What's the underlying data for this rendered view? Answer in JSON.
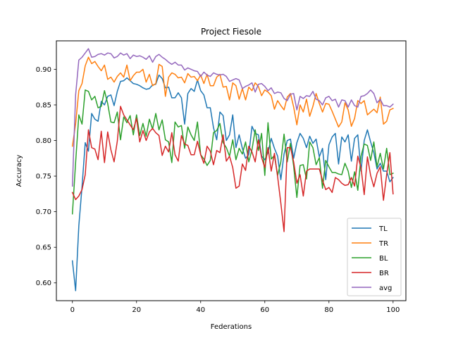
{
  "chart_data": {
    "type": "line",
    "title": "Project Fiesole",
    "xlabel": "Federations",
    "ylabel": "Accuracy",
    "xlim": [
      -5,
      104
    ],
    "ylim": [
      0.575,
      0.94
    ],
    "xticks": [
      0,
      20,
      40,
      60,
      80,
      100
    ],
    "yticks": [
      0.6,
      0.65,
      0.7,
      0.75,
      0.8,
      0.85,
      0.9
    ],
    "ytick_labels": [
      "0.60",
      "0.65",
      "0.70",
      "0.75",
      "0.80",
      "0.85",
      "0.90"
    ],
    "legend_position": "lower-right",
    "series": [
      {
        "name": "TL",
        "color": "#1f77b4",
        "values": [
          0.631,
          0.589,
          0.68,
          0.735,
          0.797,
          0.785,
          0.838,
          0.83,
          0.827,
          0.855,
          0.85,
          0.862,
          0.864,
          0.849,
          0.869,
          0.883,
          0.884,
          0.888,
          0.884,
          0.88,
          0.879,
          0.877,
          0.874,
          0.872,
          0.873,
          0.878,
          0.879,
          0.892,
          0.887,
          0.874,
          0.875,
          0.86,
          0.86,
          0.867,
          0.86,
          0.823,
          0.866,
          0.873,
          0.869,
          0.885,
          0.87,
          0.864,
          0.846,
          0.846,
          0.818,
          0.801,
          0.84,
          0.835,
          0.8,
          0.808,
          0.836,
          0.79,
          0.808,
          0.789,
          0.775,
          0.78,
          0.82,
          0.81,
          0.808,
          0.778,
          0.773,
          0.783,
          0.803,
          0.789,
          0.778,
          0.745,
          0.781,
          0.8,
          0.802,
          0.775,
          0.797,
          0.81,
          0.803,
          0.79,
          0.806,
          0.796,
          0.802,
          0.777,
          0.789,
          0.745,
          0.794,
          0.805,
          0.81,
          0.767,
          0.805,
          0.798,
          0.808,
          0.771,
          0.803,
          0.808,
          0.757,
          0.8,
          0.815,
          0.798,
          0.783,
          0.76,
          0.768,
          0.757,
          0.757,
          0.742,
          0.748
        ]
      },
      {
        "name": "TR",
        "color": "#ff7f0e",
        "values": [
          0.792,
          0.823,
          0.87,
          0.88,
          0.905,
          0.917,
          0.908,
          0.911,
          0.904,
          0.898,
          0.906,
          0.886,
          0.889,
          0.882,
          0.89,
          0.895,
          0.889,
          0.906,
          0.884,
          0.891,
          0.896,
          0.896,
          0.9,
          0.882,
          0.893,
          0.877,
          0.88,
          0.907,
          0.904,
          0.862,
          0.889,
          0.895,
          0.893,
          0.888,
          0.889,
          0.881,
          0.894,
          0.889,
          0.89,
          0.884,
          0.892,
          0.88,
          0.893,
          0.877,
          0.877,
          0.889,
          0.893,
          0.875,
          0.876,
          0.857,
          0.881,
          0.877,
          0.858,
          0.873,
          0.857,
          0.875,
          0.87,
          0.881,
          0.876,
          0.863,
          0.871,
          0.868,
          0.863,
          0.844,
          0.856,
          0.849,
          0.843,
          0.861,
          0.866,
          0.847,
          0.822,
          0.85,
          0.84,
          0.858,
          0.834,
          0.848,
          0.866,
          0.852,
          0.84,
          0.852,
          0.851,
          0.841,
          0.83,
          0.819,
          0.826,
          0.853,
          0.843,
          0.82,
          0.831,
          0.856,
          0.852,
          0.856,
          0.836,
          0.84,
          0.844,
          0.839,
          0.861,
          0.823,
          0.827,
          0.843,
          0.845
        ]
      },
      {
        "name": "BL",
        "color": "#2ca02c",
        "values": [
          0.697,
          0.769,
          0.836,
          0.823,
          0.871,
          0.869,
          0.857,
          0.862,
          0.846,
          0.848,
          0.87,
          0.852,
          0.826,
          0.825,
          0.84,
          0.801,
          0.833,
          0.825,
          0.835,
          0.808,
          0.836,
          0.807,
          0.824,
          0.806,
          0.83,
          0.816,
          0.838,
          0.815,
          0.829,
          0.801,
          0.798,
          0.769,
          0.826,
          0.819,
          0.821,
          0.789,
          0.819,
          0.808,
          0.8,
          0.826,
          0.78,
          0.774,
          0.765,
          0.772,
          0.811,
          0.814,
          0.824,
          0.797,
          0.79,
          0.778,
          0.801,
          0.773,
          0.789,
          0.781,
          0.798,
          0.77,
          0.787,
          0.815,
          0.786,
          0.81,
          0.751,
          0.825,
          0.774,
          0.779,
          0.751,
          0.77,
          0.809,
          0.77,
          0.796,
          0.764,
          0.72,
          0.765,
          0.766,
          0.746,
          0.798,
          0.79,
          0.766,
          0.776,
          0.733,
          0.772,
          0.763,
          0.755,
          0.755,
          0.753,
          0.752,
          0.768,
          0.757,
          0.734,
          0.756,
          0.73,
          0.778,
          0.795,
          0.793,
          0.772,
          0.798,
          0.763,
          0.782,
          0.76,
          0.789,
          0.752,
          0.754
        ]
      },
      {
        "name": "BR",
        "color": "#d62728",
        "values": [
          0.727,
          0.717,
          0.722,
          0.731,
          0.752,
          0.815,
          0.79,
          0.788,
          0.773,
          0.813,
          0.769,
          0.812,
          0.787,
          0.77,
          0.799,
          0.848,
          0.836,
          0.829,
          0.822,
          0.815,
          0.831,
          0.798,
          0.814,
          0.8,
          0.812,
          0.817,
          0.811,
          0.807,
          0.779,
          0.792,
          0.784,
          0.811,
          0.78,
          0.771,
          0.807,
          0.795,
          0.793,
          0.78,
          0.78,
          0.799,
          0.78,
          0.768,
          0.792,
          0.785,
          0.766,
          0.786,
          0.783,
          0.808,
          0.771,
          0.778,
          0.762,
          0.733,
          0.736,
          0.767,
          0.758,
          0.792,
          0.784,
          0.77,
          0.801,
          0.776,
          0.762,
          0.79,
          0.757,
          0.782,
          0.749,
          0.712,
          0.672,
          0.79,
          0.79,
          0.77,
          0.74,
          0.752,
          0.722,
          0.757,
          0.76,
          0.76,
          0.76,
          0.76,
          0.744,
          0.731,
          0.734,
          0.727,
          0.748,
          0.745,
          0.74,
          0.737,
          0.738,
          0.748,
          0.736,
          0.778,
          0.762,
          0.724,
          0.777,
          0.751,
          0.735,
          0.754,
          0.763,
          0.716,
          0.752,
          0.783,
          0.725
        ]
      },
      {
        "name": "avg",
        "color": "#9467bd",
        "values": [
          0.736,
          0.864,
          0.913,
          0.917,
          0.923,
          0.929,
          0.917,
          0.918,
          0.921,
          0.922,
          0.92,
          0.923,
          0.922,
          0.916,
          0.918,
          0.923,
          0.92,
          0.922,
          0.915,
          0.92,
          0.918,
          0.919,
          0.917,
          0.914,
          0.919,
          0.91,
          0.918,
          0.921,
          0.917,
          0.914,
          0.91,
          0.907,
          0.91,
          0.906,
          0.906,
          0.899,
          0.902,
          0.9,
          0.898,
          0.897,
          0.89,
          0.896,
          0.892,
          0.89,
          0.895,
          0.893,
          0.892,
          0.893,
          0.89,
          0.883,
          0.885,
          0.887,
          0.885,
          0.873,
          0.876,
          0.878,
          0.881,
          0.868,
          0.879,
          0.88,
          0.876,
          0.87,
          0.874,
          0.866,
          0.868,
          0.867,
          0.859,
          0.856,
          0.865,
          0.866,
          0.843,
          0.862,
          0.859,
          0.863,
          0.862,
          0.869,
          0.858,
          0.856,
          0.85,
          0.86,
          0.862,
          0.856,
          0.858,
          0.847,
          0.857,
          0.856,
          0.847,
          0.857,
          0.849,
          0.847,
          0.862,
          0.863,
          0.866,
          0.871,
          0.866,
          0.853,
          0.858,
          0.849,
          0.849,
          0.847,
          0.851
        ]
      }
    ]
  }
}
